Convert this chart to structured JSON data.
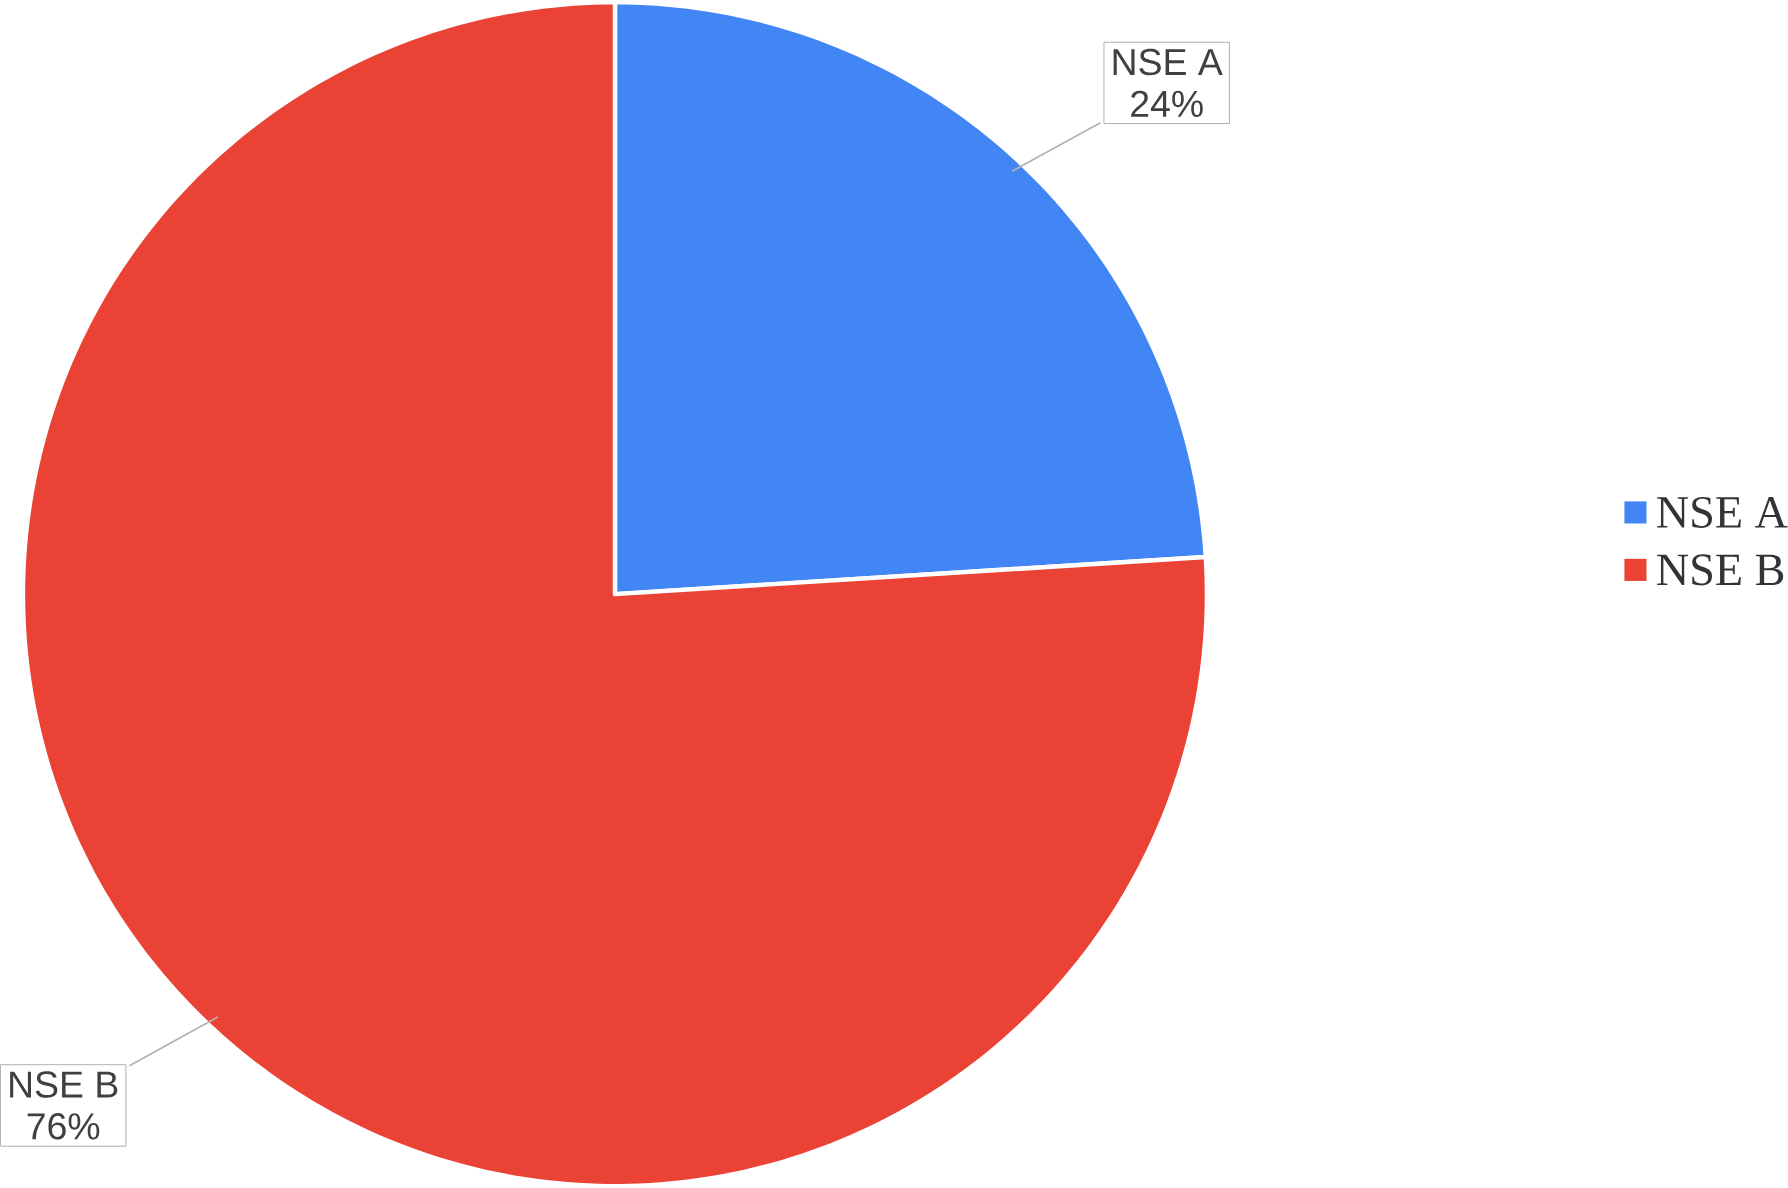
{
  "chart_data": {
    "type": "pie",
    "categories": [
      "NSE A",
      "NSE B"
    ],
    "values": [
      24,
      76
    ],
    "colors": [
      "#4285f4",
      "#ea4335"
    ],
    "value_labels": [
      "24%",
      "76%"
    ],
    "legend": "right"
  }
}
